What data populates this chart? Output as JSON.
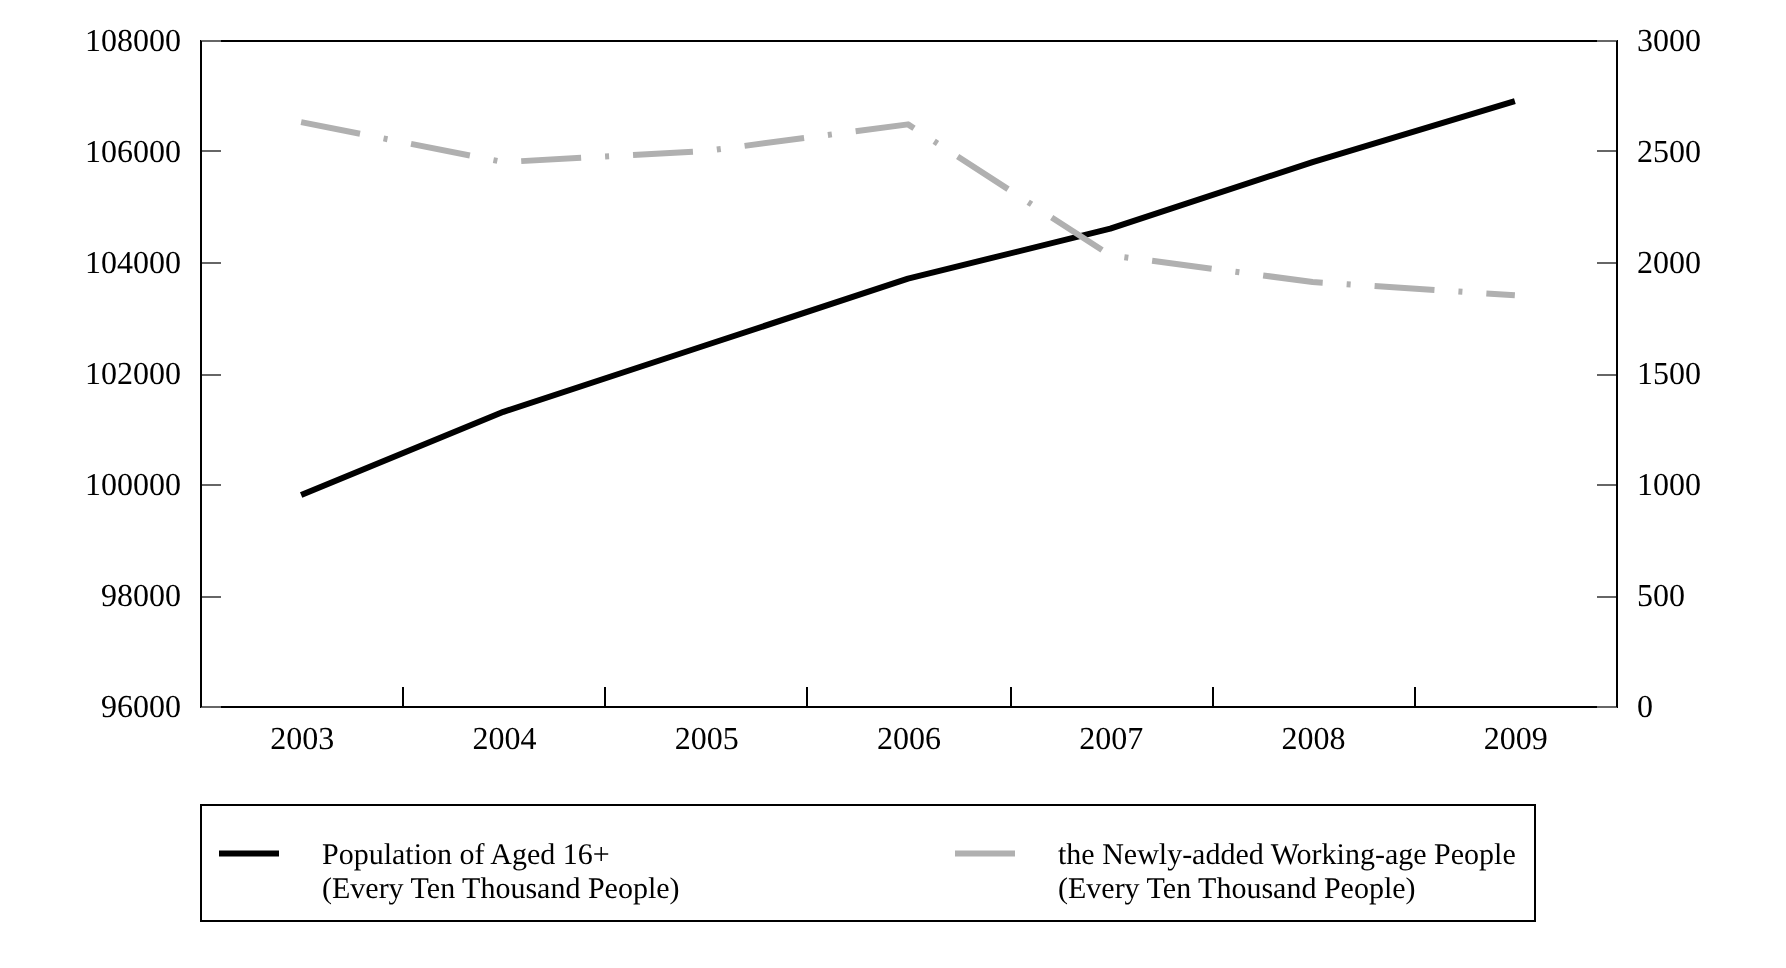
{
  "chart_data": {
    "type": "line",
    "categories": [
      "2003",
      "2004",
      "2005",
      "2006",
      "2007",
      "2008",
      "2009"
    ],
    "series": [
      {
        "name": "Population of Aged 16+ (Every Ten Thousand People)",
        "color": "#000000",
        "line_style": "solid",
        "values": [
          99800,
          101300,
          102500,
          103700,
          104600,
          105800,
          106900
        ]
      },
      {
        "name": "the Newly-added Working-age People (Every Ten Thousand People)",
        "color": "#b0b0b0",
        "line_style": "dashed",
        "axis": "y2",
        "values": [
          2630,
          2450,
          2500,
          2620,
          2030,
          1910,
          1850
        ]
      }
    ],
    "ylim": [
      96000,
      108000
    ],
    "yticks": [
      96000,
      98000,
      100000,
      102000,
      104000,
      106000,
      108000
    ],
    "y2lim": [
      0,
      3000
    ],
    "y2ticks": [
      0,
      500,
      1000,
      1500,
      2000,
      2500,
      3000
    ],
    "grid": false,
    "legend": "bottom"
  }
}
